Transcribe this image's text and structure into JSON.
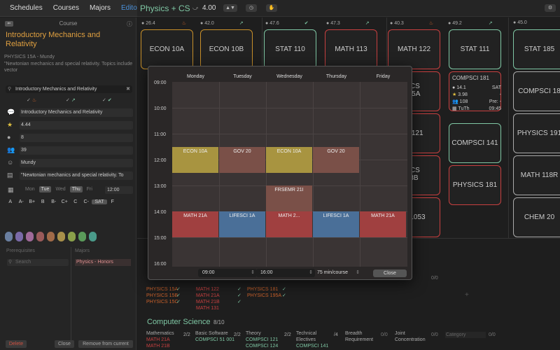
{
  "nav": {
    "items": [
      "Schedules",
      "Courses",
      "Majors",
      "Editor"
    ],
    "active": "Editor"
  },
  "toolbar": {
    "plan_title": "Physics + CS",
    "gpa": "4.00"
  },
  "sidebar": {
    "header": "Course",
    "title": "Introductory Mechanics and Relativity",
    "subtitle": "PHYSICS 15A - Mundy",
    "description": "\"Newtonian mechanics and special relativity. Topics include vector",
    "search_value": "Introductory Mechanics and Relativity",
    "fields": [
      {
        "icon": "speech-bubble-icon",
        "value": "Introductory Mechanics and Relativity"
      },
      {
        "icon": "star-icon",
        "value": "4.44"
      },
      {
        "icon": "circle-icon",
        "value": "8"
      },
      {
        "icon": "people-icon",
        "value": "39"
      },
      {
        "icon": "face-icon",
        "value": "Mundy"
      },
      {
        "icon": "note-icon",
        "value": "\"Newtonian mechanics and special relativity. To"
      }
    ],
    "days": [
      "Mon",
      "Tue",
      "Wed",
      "Thu",
      "Fri"
    ],
    "days_on": [
      "Tue",
      "Thu"
    ],
    "time": "12:00",
    "grades": [
      "A",
      "A-",
      "B+",
      "B",
      "B-",
      "C+",
      "C",
      "C-",
      "SAT",
      "F"
    ],
    "grade_on": "SAT",
    "colors": [
      "#6a7fa0",
      "#7a6aa8",
      "#a06a9a",
      "#9a5a5a",
      "#a06a48",
      "#a8904a",
      "#8aa04a",
      "#5a9a5a",
      "#4a9a8a"
    ],
    "prereq_label": "Prerequisites",
    "majors_label": "Majors",
    "prereq_search_placeholder": "Search",
    "major_item": "Physics - Honors",
    "btn_delete": "Delete",
    "btn_close": "Close",
    "btn_remove": "Remove from current"
  },
  "columns": [
    {
      "head": "26.4"
    },
    {
      "head": "42.0"
    },
    {
      "head": "47.6"
    },
    {
      "head": "47.3"
    },
    {
      "head": "40.3"
    },
    {
      "head": "49.2"
    },
    {
      "head": "45.0"
    }
  ],
  "cards": [
    {
      "label": "ECON 10A"
    },
    {
      "label": "ECON 10B"
    },
    {
      "label": "STAT 110"
    },
    {
      "label": "MATH 113"
    },
    {
      "label": "MATH 122"
    },
    {
      "label": "STAT 111"
    },
    {
      "label": "STAT 185"
    },
    {
      "label": "ICS"
    },
    {
      "label": "95A"
    },
    {
      "label": "COMPSCI 18"
    },
    {
      "label": "S 121"
    },
    {
      "label": "COMPSCI 141"
    },
    {
      "label": "PHYSICS 191"
    },
    {
      "label": "ICS"
    },
    {
      "label": "3B"
    },
    {
      "label": "PHYSICS 181"
    },
    {
      "label": "MATH 118R"
    },
    {
      "label": "D 1053"
    },
    {
      "label": "CHEM 20"
    }
  ],
  "detail_card": {
    "title": "COMPSCI 181",
    "lines": [
      {
        "icon": "circle-icon",
        "a": "14.1",
        "b": "SAT"
      },
      {
        "icon": "star-icon",
        "a": "3.98",
        "b": "-"
      },
      {
        "icon": "people-icon",
        "a": "108",
        "b": "Pre: -"
      },
      {
        "icon": "calendar-icon",
        "a": "TuTh",
        "b": "09:45"
      }
    ]
  },
  "bottom": {
    "list1": [
      "PHYSICS 15A",
      "PHYSICS 15B",
      "PHYSICS 15C"
    ],
    "list2": [
      "MATH 122",
      "MATH 21A",
      "MATH 21B",
      "MATH 131"
    ],
    "list3": [
      "PHYSICS 181",
      "PHYSICS 195A"
    ],
    "section_title": "Computer Science",
    "section_count": "8/10",
    "categories": [
      {
        "name": "Mathematics",
        "count": "2/2",
        "items": [
          "MATH 21A",
          "MATH 21B"
        ]
      },
      {
        "name": "Basic Software",
        "count": "2/2",
        "items": [
          "COMPSCI 51 001"
        ]
      },
      {
        "name": "Theory",
        "count": "2/2",
        "items": [
          "COMPSCI 121",
          "COMPSCI 124"
        ]
      },
      {
        "name": "Technical Electives",
        "count": "/4",
        "items": [
          "COMPSCI 141"
        ]
      },
      {
        "name": "Breadth Requirement",
        "count": "0/0",
        "items": []
      },
      {
        "name": "Joint Concentration",
        "count": "0/0",
        "items": []
      },
      {
        "name": "Category",
        "count": "0/0",
        "items": []
      }
    ],
    "ratio_top": "0/0"
  },
  "modal": {
    "days": [
      "Monday",
      "Tuesday",
      "Wednesday",
      "Thursday",
      "Friday"
    ],
    "hours": [
      "09:00",
      "10:00",
      "11:00",
      "12:00",
      "13:00",
      "14:00",
      "15:00",
      "16:00"
    ],
    "events": [
      {
        "label": "ECON 10A",
        "day": 0,
        "start": 11.5,
        "end": 12.5,
        "color": "#a89440"
      },
      {
        "label": "GOV 20",
        "day": 1,
        "start": 11.5,
        "end": 12.5,
        "color": "#7a5048"
      },
      {
        "label": "ECON 10A",
        "day": 2,
        "start": 11.5,
        "end": 12.5,
        "color": "#a89440"
      },
      {
        "label": "GOV 20",
        "day": 3,
        "start": 11.5,
        "end": 12.5,
        "color": "#7a5048"
      },
      {
        "label": "FRSEMR 21I",
        "day": 2,
        "start": 13.0,
        "end": 15.0,
        "color": "#7a5048"
      },
      {
        "label": "MATH 21A",
        "day": 0,
        "start": 14.0,
        "end": 15.0,
        "color": "#a04040"
      },
      {
        "label": "LIFESCI 1A",
        "day": 1,
        "start": 14.0,
        "end": 15.0,
        "color": "#4a6f98"
      },
      {
        "label": "MATH 2...",
        "day": 2,
        "start": 14.0,
        "end": 15.0,
        "color": "#a04040"
      },
      {
        "label": "LIFESCI 1A",
        "day": 3,
        "start": 14.0,
        "end": 15.0,
        "color": "#4a6f98"
      },
      {
        "label": "MATH 21A",
        "day": 4,
        "start": 14.0,
        "end": 15.0,
        "color": "#a04040"
      }
    ],
    "start_time": "09:00",
    "end_time": "16:00",
    "interval": "75 min/course",
    "close_label": "Close"
  }
}
